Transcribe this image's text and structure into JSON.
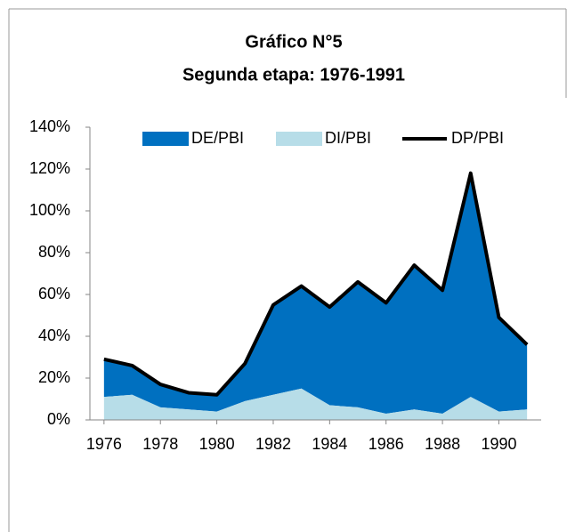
{
  "chart_data": {
    "type": "stacked-area-line",
    "title": "Gráfico N°5",
    "subtitle": "Segunda etapa: 1976-1991",
    "x": [
      1976,
      1977,
      1978,
      1979,
      1980,
      1981,
      1982,
      1983,
      1984,
      1985,
      1986,
      1987,
      1988,
      1989,
      1990,
      1991
    ],
    "xlim": [
      1975.5,
      1991.5
    ],
    "xticks": [
      1976,
      1978,
      1980,
      1982,
      1984,
      1986,
      1988,
      1990
    ],
    "ylim": [
      0,
      140
    ],
    "yticks": [
      {
        "value": 0,
        "label": "0%"
      },
      {
        "value": 20,
        "label": "20%"
      },
      {
        "value": 40,
        "label": "40%"
      },
      {
        "value": 60,
        "label": "60%"
      },
      {
        "value": 80,
        "label": "80%"
      },
      {
        "value": 100,
        "label": "100%"
      },
      {
        "value": 120,
        "label": "120%"
      },
      {
        "value": 140,
        "label": "140%"
      }
    ],
    "legend": "top",
    "series": [
      {
        "name": "DE/PBI",
        "kind": "area",
        "stack_on": 1,
        "color": "#0070c0",
        "values": [
          18,
          14,
          11,
          8,
          8,
          18,
          43,
          49,
          47,
          60,
          53,
          69,
          59,
          107,
          45,
          31
        ]
      },
      {
        "name": "DI/PBI",
        "kind": "area",
        "color": "#b7dde8",
        "values": [
          11,
          12,
          6,
          5,
          4,
          9,
          12,
          15,
          7,
          6,
          3,
          5,
          3,
          11,
          4,
          5
        ]
      },
      {
        "name": "DP/PBI",
        "kind": "line",
        "color": "#000000",
        "values": [
          29,
          26,
          17,
          13,
          12,
          27,
          55,
          64,
          54,
          66,
          56,
          74,
          62,
          118,
          49,
          36
        ]
      }
    ]
  }
}
